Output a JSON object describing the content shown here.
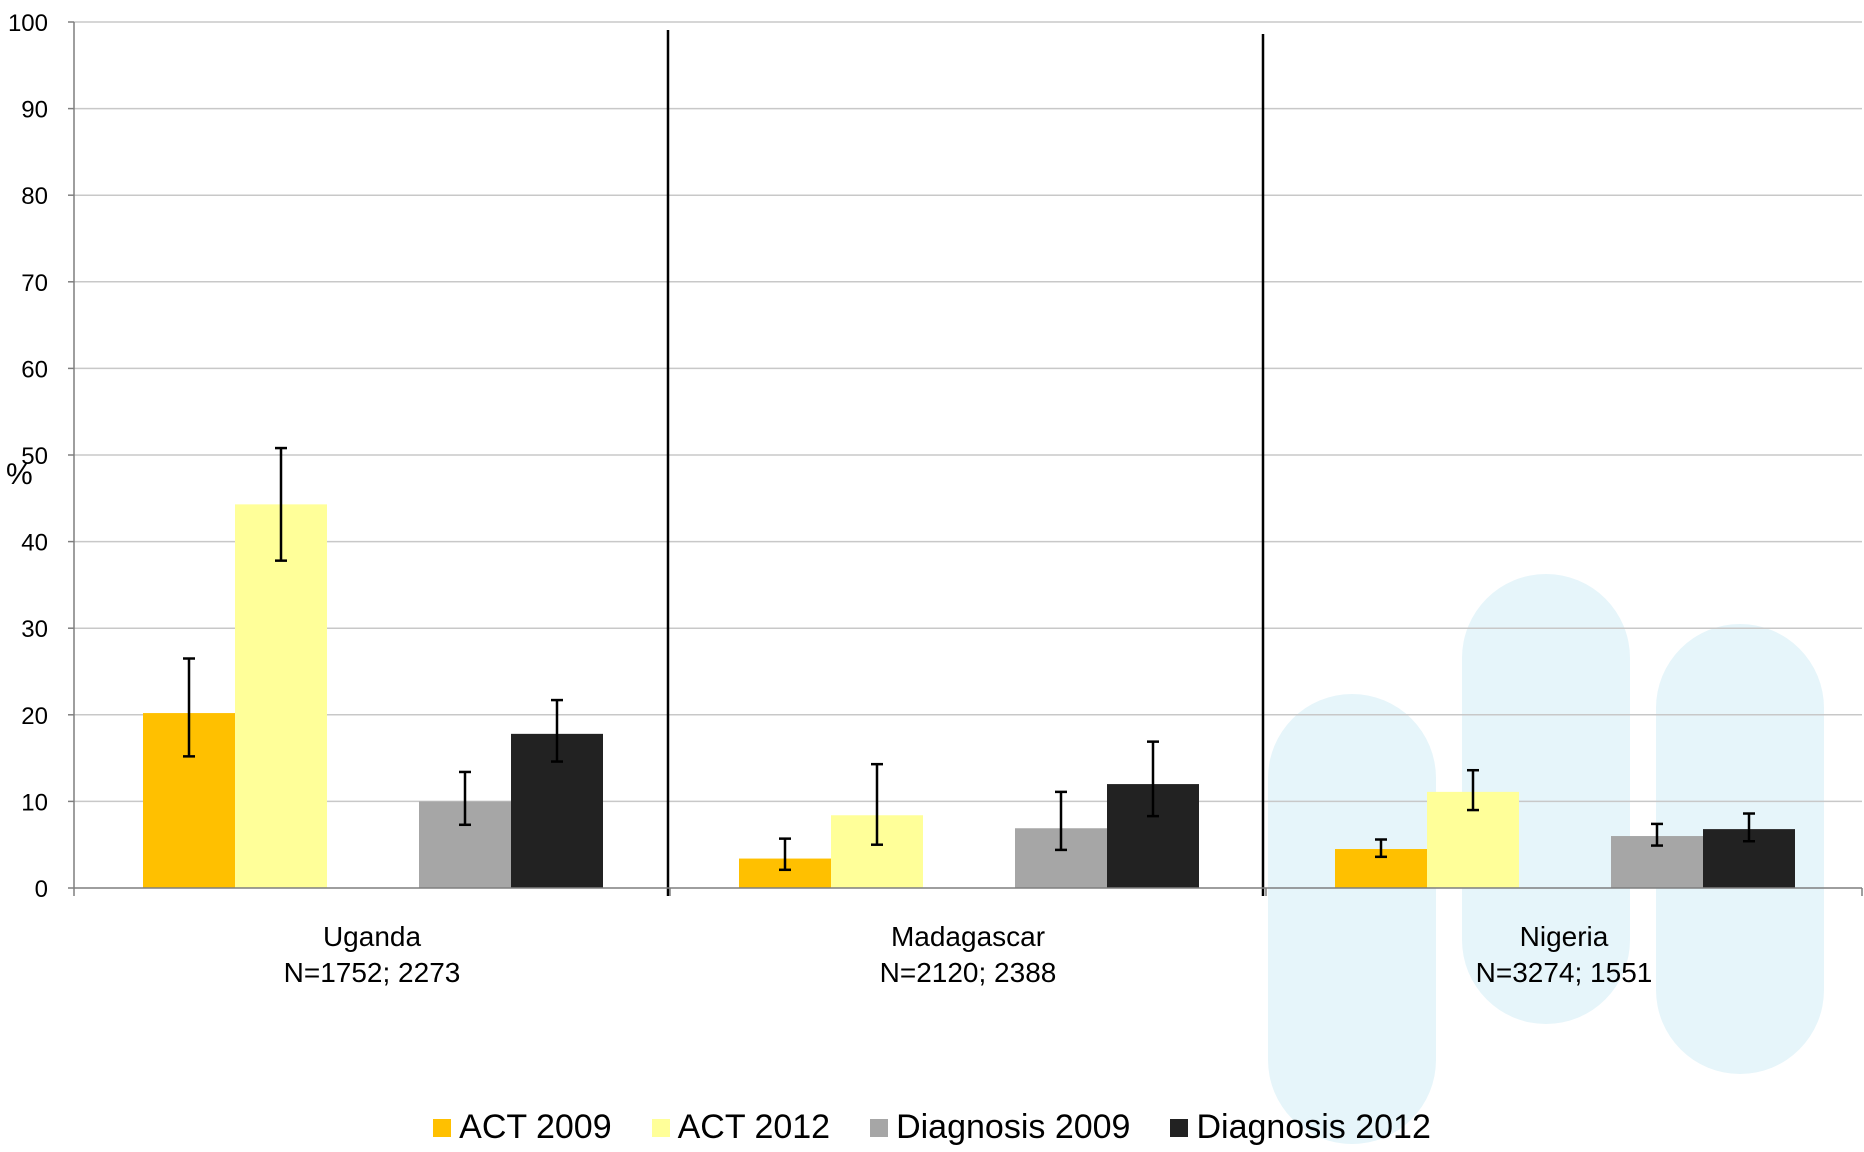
{
  "chart_data": {
    "type": "bar",
    "ylabel": "%",
    "ylim": [
      0,
      100
    ],
    "yticks": [
      0,
      10,
      20,
      30,
      40,
      50,
      60,
      70,
      80,
      90,
      100
    ],
    "grid": true,
    "legend_position": "bottom",
    "categories": [
      {
        "name": "Uganda",
        "n": "N=1752; 2273"
      },
      {
        "name": "Madagascar",
        "n": "N=2120; 2388"
      },
      {
        "name": "Nigeria",
        "n": "N=3274; 1551"
      }
    ],
    "series": [
      {
        "name": "ACT 2009",
        "color": "#FFC000",
        "values": [
          20.2,
          3.4,
          4.5
        ],
        "error_low": [
          15.2,
          2.1,
          3.6
        ],
        "error_high": [
          26.5,
          5.7,
          5.6
        ]
      },
      {
        "name": "ACT 2012",
        "color": "#FFFF99",
        "values": [
          44.3,
          8.4,
          11.1
        ],
        "error_low": [
          37.8,
          5.0,
          9.0
        ],
        "error_high": [
          50.8,
          14.3,
          13.6
        ]
      },
      {
        "name": "Diagnosis 2009",
        "color": "#A6A6A6",
        "values": [
          10.0,
          6.9,
          6.0
        ],
        "error_low": [
          7.3,
          4.4,
          4.9
        ],
        "error_high": [
          13.4,
          11.1,
          7.4
        ]
      },
      {
        "name": "Diagnosis 2012",
        "color": "#222222",
        "values": [
          17.8,
          12.0,
          6.8
        ],
        "error_low": [
          14.6,
          8.3,
          5.4
        ],
        "error_high": [
          21.7,
          16.9,
          8.6
        ]
      }
    ],
    "watermark": "light-blue-pills-icon"
  }
}
